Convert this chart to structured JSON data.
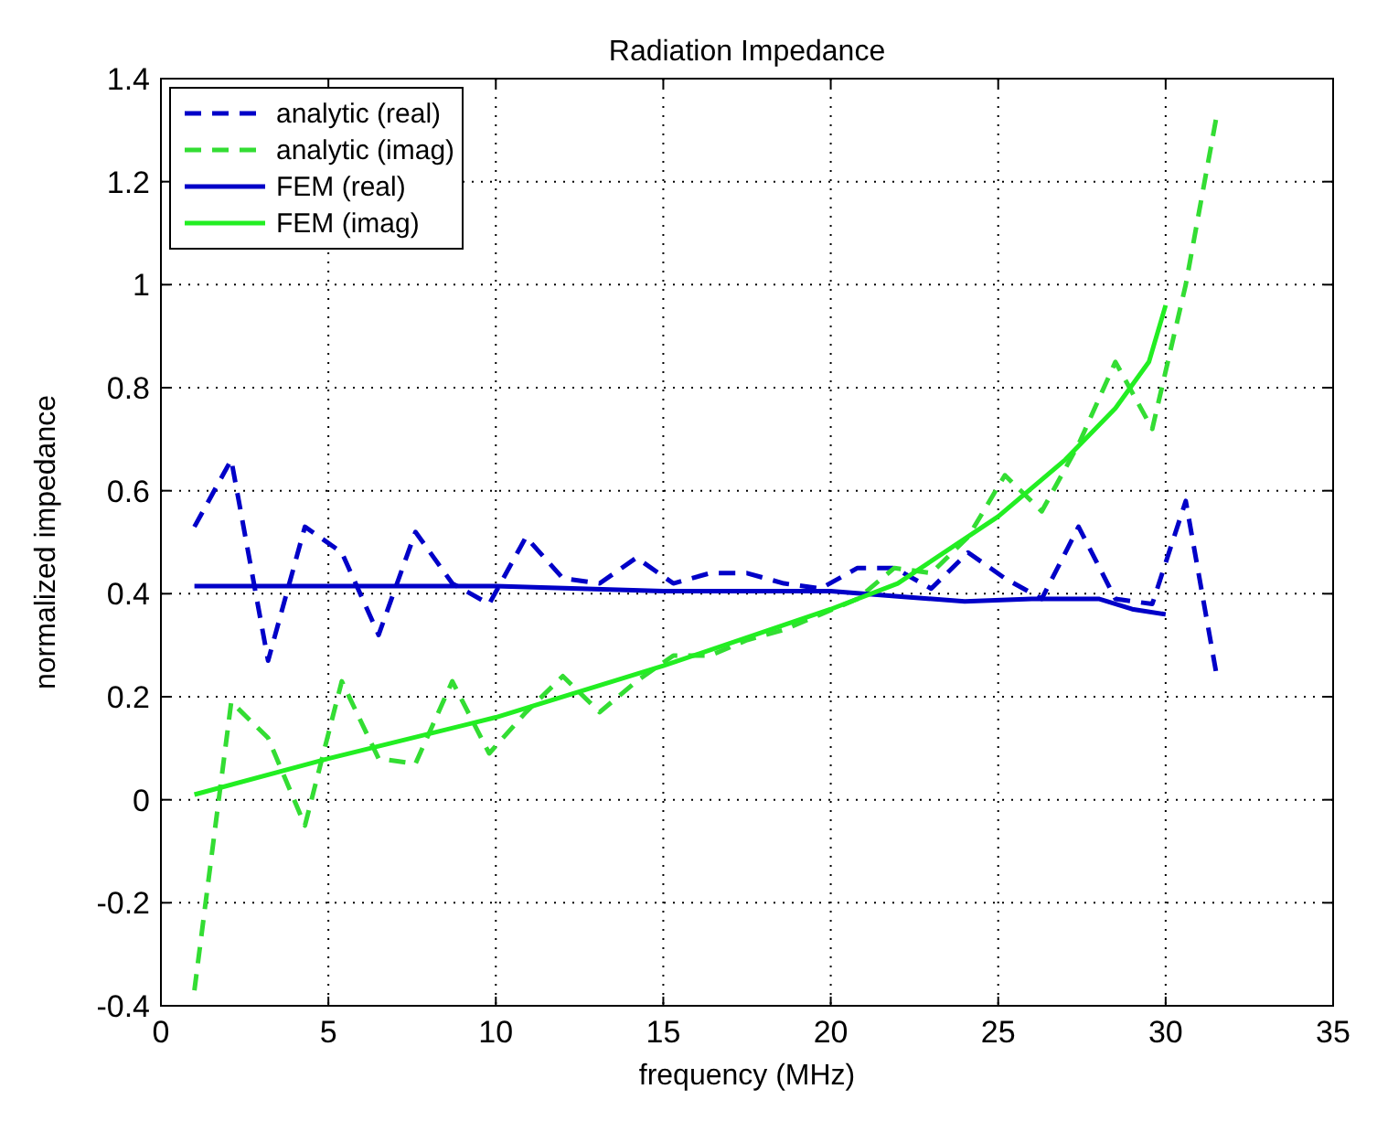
{
  "chart_data": {
    "type": "line",
    "title": "Radiation Impedance",
    "xlabel": "frequency (MHz)",
    "ylabel": "normalized impedance",
    "xlim": [
      0,
      35
    ],
    "xticks": [
      0,
      5,
      10,
      15,
      20,
      25,
      30,
      35
    ],
    "ylim": [
      -0.4,
      1.4
    ],
    "yticks": [
      -0.4,
      -0.2,
      0,
      0.2,
      0.4,
      0.6,
      0.8,
      1,
      1.2,
      1.4
    ],
    "grid": true,
    "legend": "top left",
    "series": [
      {
        "name": "analytic (real)",
        "color": "#0000c8",
        "line_style": "dashed",
        "x": [
          1,
          2.1,
          3.2,
          4.3,
          5.4,
          6.5,
          7.6,
          8.7,
          9.8,
          10.9,
          12,
          13.1,
          14.2,
          15.3,
          16.4,
          17.5,
          18.6,
          19.7,
          20.8,
          21.9,
          23,
          24.1,
          25.2,
          26.3,
          27.4,
          28.5,
          29.6,
          30.6,
          31.5
        ],
        "values": [
          0.53,
          0.66,
          0.27,
          0.53,
          0.48,
          0.32,
          0.52,
          0.42,
          0.38,
          0.51,
          0.43,
          0.42,
          0.47,
          0.42,
          0.44,
          0.44,
          0.42,
          0.41,
          0.45,
          0.45,
          0.41,
          0.48,
          0.43,
          0.39,
          0.53,
          0.39,
          0.38,
          0.58,
          0.25
        ]
      },
      {
        "name": "analytic (imag)",
        "color": "#33dd33",
        "line_style": "dashed",
        "x": [
          1,
          2.1,
          3.2,
          4.3,
          5.4,
          6.5,
          7.6,
          8.7,
          9.8,
          10.9,
          12,
          13.1,
          14.2,
          15.3,
          16.4,
          17.5,
          18.6,
          19.7,
          20.8,
          21.9,
          23,
          24.1,
          25.2,
          26.3,
          27.4,
          28.5,
          29.6,
          30.6,
          31.5
        ],
        "values": [
          -0.37,
          0.19,
          0.12,
          -0.05,
          0.23,
          0.08,
          0.07,
          0.23,
          0.09,
          0.17,
          0.24,
          0.17,
          0.23,
          0.28,
          0.28,
          0.31,
          0.33,
          0.36,
          0.39,
          0.45,
          0.44,
          0.51,
          0.63,
          0.56,
          0.69,
          0.85,
          0.72,
          1.0,
          1.32
        ]
      },
      {
        "name": "FEM (real)",
        "color": "#0000c8",
        "line_style": "solid",
        "x": [
          1,
          5,
          10,
          15,
          20,
          22,
          24,
          26,
          28,
          29,
          30
        ],
        "values": [
          0.415,
          0.415,
          0.415,
          0.405,
          0.405,
          0.395,
          0.385,
          0.39,
          0.39,
          0.37,
          0.36
        ]
      },
      {
        "name": "FEM (imag)",
        "color": "#22ee22",
        "line_style": "solid",
        "x": [
          1,
          5,
          10,
          15,
          20,
          22,
          25,
          27,
          28.5,
          29.5,
          30
        ],
        "values": [
          0.01,
          0.08,
          0.16,
          0.26,
          0.37,
          0.42,
          0.55,
          0.66,
          0.76,
          0.85,
          0.96
        ]
      }
    ]
  }
}
